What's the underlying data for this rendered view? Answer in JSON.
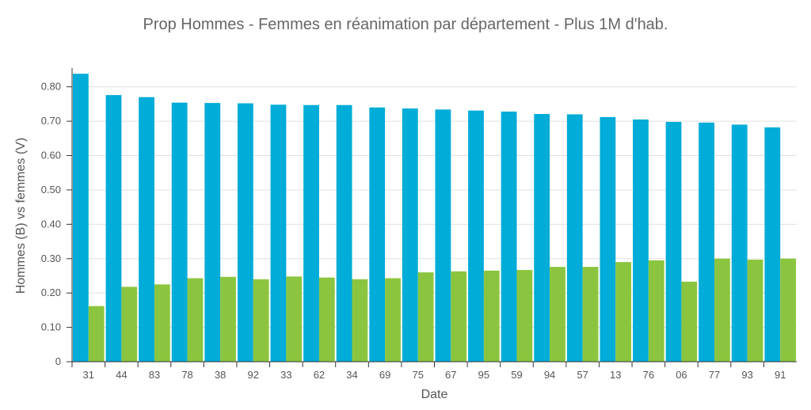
{
  "chart_data": {
    "type": "bar",
    "title": "Prop Hommes - Femmes  en réanimation par département - Plus 1M d'hab.",
    "xlabel": "Date",
    "ylabel": "Hommes (B) vs femmes (V)",
    "ylim": [
      0,
      0.85
    ],
    "yticks": [
      "0",
      "0.10",
      "0.20",
      "0.30",
      "0.40",
      "0.50",
      "0.60",
      "0.70",
      "0.80"
    ],
    "grid": true,
    "categories": [
      "31",
      "44",
      "83",
      "78",
      "38",
      "92",
      "33",
      "62",
      "34",
      "69",
      "75",
      "67",
      "95",
      "59",
      "94",
      "57",
      "13",
      "76",
      "06",
      "77",
      "93",
      "91"
    ],
    "series": [
      {
        "values": [
          0.838,
          0.776,
          0.77,
          0.754,
          0.753,
          0.752,
          0.748,
          0.747,
          0.747,
          0.74,
          0.737,
          0.734,
          0.731,
          0.728,
          0.721,
          0.72,
          0.712,
          0.705,
          0.698,
          0.696,
          0.69,
          0.682
        ],
        "color": "#00acd8"
      },
      {
        "values": [
          0.162,
          0.218,
          0.225,
          0.243,
          0.247,
          0.24,
          0.248,
          0.245,
          0.24,
          0.243,
          0.26,
          0.263,
          0.265,
          0.267,
          0.276,
          0.276,
          0.29,
          0.295,
          0.233,
          0.3,
          0.297,
          0.3
        ],
        "color": "#8bc53f"
      }
    ],
    "colors": {
      "axis": "#333333",
      "grid": "#e0e0e0",
      "text": "#555555",
      "title": "#666666"
    }
  }
}
